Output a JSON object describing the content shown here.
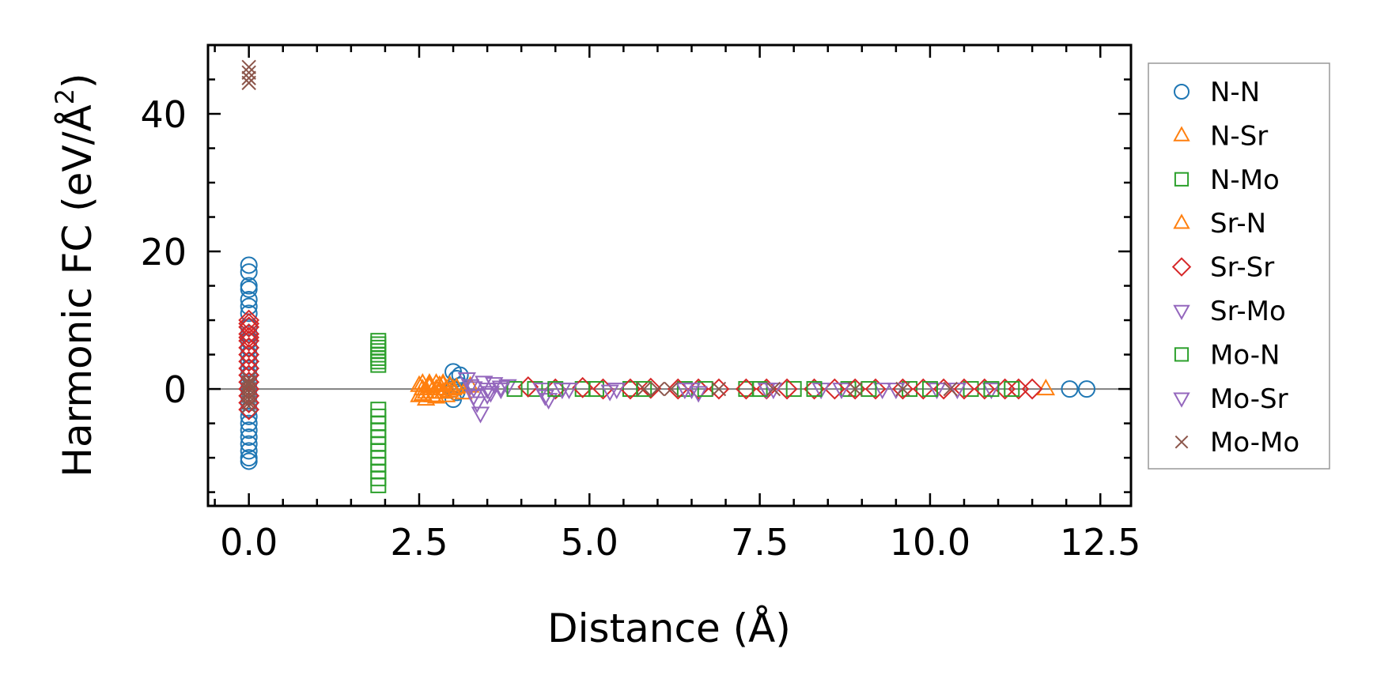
{
  "chart_data": {
    "type": "scatter",
    "title": "",
    "xlabel": "Distance (Å)",
    "ylabel_main": "Harmonic FC (eV/Å",
    "ylabel_sup": "2",
    "ylabel_close": ")",
    "xlim": [
      -0.6,
      12.95
    ],
    "ylim": [
      -17,
      50
    ],
    "xticks": [
      0.0,
      2.5,
      5.0,
      7.5,
      10.0,
      12.5
    ],
    "xtick_labels": [
      "0.0",
      "2.5",
      "5.0",
      "7.5",
      "10.0",
      "12.5"
    ],
    "yticks": [
      0,
      20,
      40
    ],
    "ytick_labels": [
      "0",
      "20",
      "40"
    ],
    "x_minor_step": 0.5,
    "y_minor_step": 5,
    "zero_line": true,
    "legend_position": "outside-right",
    "series": [
      {
        "name": "N-N",
        "marker": "circle",
        "color": "#1f77b4",
        "x": [
          0,
          0,
          0,
          0,
          0,
          0,
          0,
          0,
          0,
          0,
          0,
          0,
          0,
          0,
          0,
          0,
          0,
          0,
          0,
          0,
          0,
          0,
          0,
          0,
          0,
          0,
          0,
          0,
          3.0,
          3.05,
          3.1,
          3.05,
          3.0,
          3.1,
          3.0,
          12.05,
          12.3
        ],
        "y": [
          18,
          17,
          15,
          14.5,
          13,
          12,
          11,
          9,
          8,
          7,
          6,
          5,
          4,
          3,
          2,
          1,
          0,
          -1,
          -2,
          -3,
          -4,
          -5,
          -6,
          -7,
          -8,
          -9,
          -10,
          -10.5,
          2.5,
          1.5,
          0.5,
          -0.5,
          -1.5,
          2,
          0,
          0,
          0
        ]
      },
      {
        "name": "N-Sr",
        "marker": "triangle-up",
        "color": "#ff7f0e",
        "x": [
          2.5,
          2.55,
          2.6,
          2.65,
          2.7,
          2.75,
          2.8,
          2.85,
          2.9,
          2.95,
          2.5,
          2.6,
          2.7,
          2.8,
          2.9,
          3.0,
          2.55,
          2.65,
          2.75,
          2.85,
          11.7
        ],
        "y": [
          0.5,
          0,
          -0.5,
          0.5,
          -1,
          0,
          0.5,
          -0.5,
          0,
          0.5,
          -1,
          -1.5,
          -1,
          -0.5,
          -1,
          0,
          0.8,
          0.8,
          0.8,
          0.8,
          0
        ]
      },
      {
        "name": "N-Mo",
        "marker": "square",
        "color": "#2ca02c",
        "x": [
          1.9,
          1.9,
          1.9,
          1.9,
          1.9,
          1.9,
          1.9,
          1.9,
          1.9,
          1.9,
          1.9,
          1.9,
          1.9,
          1.9,
          1.9,
          1.9,
          1.9,
          1.9,
          1.9,
          1.9,
          4.2,
          4.9,
          5.6,
          6.4,
          7.3,
          8.0,
          8.8,
          9.7,
          10.6
        ],
        "y": [
          7,
          6.5,
          6,
          5.5,
          5,
          4.5,
          4,
          3.5,
          -3,
          -4,
          -5,
          -6,
          -7,
          -8,
          -9,
          -10,
          -11,
          -12,
          -13,
          -14,
          0,
          0,
          0,
          0,
          0,
          0,
          0,
          0,
          0
        ]
      },
      {
        "name": "Sr-N",
        "marker": "triangle-up",
        "color": "#ff7f0e",
        "x": [
          2.55,
          2.65,
          2.75,
          2.85,
          2.95,
          3.05,
          3.15,
          3.25
        ],
        "y": [
          -0.8,
          0.3,
          -1.2,
          0.6,
          -0.3,
          0.2,
          -0.6,
          0.4
        ]
      },
      {
        "name": "Sr-Sr",
        "marker": "diamond",
        "color": "#d62728",
        "x": [
          0,
          0,
          0,
          0,
          0,
          0,
          0,
          0,
          0,
          0,
          0,
          0,
          0,
          0,
          0,
          0,
          4.1,
          4.5,
          4.9,
          5.2,
          5.6,
          5.9,
          6.3,
          6.6,
          6.9,
          7.3,
          7.6,
          7.9,
          8.3,
          8.6,
          8.9,
          9.2,
          9.6,
          9.9,
          10.2,
          10.5,
          10.8,
          11.1,
          11.3,
          11.5
        ],
        "y": [
          10,
          9,
          8,
          7,
          6,
          5,
          4,
          3,
          2,
          1,
          0,
          -1,
          -2,
          -3,
          9.5,
          7.5,
          0.3,
          0,
          0.2,
          0,
          0,
          0.1,
          0,
          0,
          0,
          0,
          0,
          0,
          0,
          0,
          0,
          0,
          0,
          0,
          0,
          0,
          0,
          0,
          0,
          0
        ]
      },
      {
        "name": "Sr-Mo",
        "marker": "triangle-down",
        "color": "#9467bd",
        "x": [
          3.2,
          3.25,
          3.3,
          3.35,
          3.4,
          3.45,
          3.5,
          3.55,
          3.6,
          3.7,
          3.8,
          4.3,
          4.35,
          4.4,
          4.7,
          5.4,
          6.4,
          6.6,
          7.6,
          8.4,
          9.3,
          10.1,
          10.9
        ],
        "y": [
          1.5,
          0.5,
          -1,
          -2,
          -3.5,
          1,
          0,
          -0.5,
          0.8,
          0,
          0.5,
          0,
          -1,
          -1.5,
          0,
          0,
          0,
          -0.5,
          0,
          0,
          0,
          0,
          0
        ]
      },
      {
        "name": "Mo-N",
        "marker": "square",
        "color": "#2ca02c",
        "x": [
          3.9,
          4.5,
          5.1,
          5.8,
          6.7,
          7.5,
          8.3,
          9.1,
          10.0,
          10.9,
          11.2
        ],
        "y": [
          0,
          0,
          0,
          0,
          0,
          0,
          0,
          0,
          0,
          0,
          0
        ]
      },
      {
        "name": "Mo-Sr",
        "marker": "triangle-down",
        "color": "#9467bd",
        "x": [
          3.3,
          3.5,
          3.7,
          4.6,
          5.3,
          6.5,
          7.7,
          8.7,
          9.5,
          10.4
        ],
        "y": [
          0.2,
          -0.8,
          0.3,
          0,
          -0.3,
          0,
          0,
          0,
          0,
          0
        ]
      },
      {
        "name": "Mo-Mo",
        "marker": "x",
        "color": "#8c564b",
        "x": [
          0,
          0,
          0,
          0,
          0,
          0,
          0,
          0,
          0,
          0,
          0,
          0,
          0,
          0,
          5.8,
          6.0,
          6.2,
          6.9,
          7.7,
          8.9,
          9.6,
          10.3
        ],
        "y": [
          46.8,
          46,
          45.2,
          44.5,
          1.5,
          1,
          0.5,
          0,
          -0.5,
          -1,
          -1.5,
          -2,
          -2.5,
          0.8,
          0,
          0,
          0,
          0,
          0,
          0,
          0,
          0
        ]
      }
    ]
  }
}
